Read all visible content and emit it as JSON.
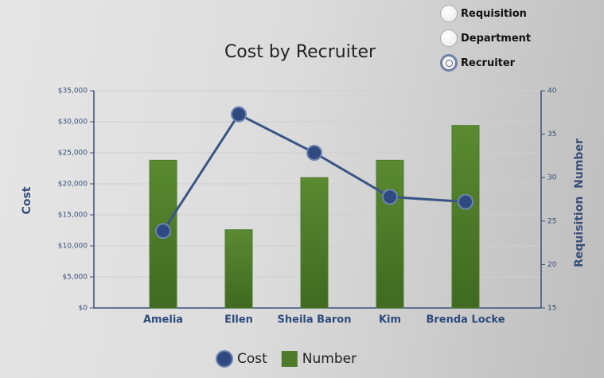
{
  "chart_data": {
    "type": "bar-line",
    "title": "Cost by Recruiter",
    "categories": [
      "Amelia",
      "Ellen",
      "Sheila Baron",
      "Kim",
      "Brenda Locke"
    ],
    "series": [
      {
        "name": "Number",
        "type": "bar",
        "axis": "y2",
        "color": "#4f7a2c",
        "values": [
          32,
          24,
          30,
          32,
          36
        ]
      },
      {
        "name": "Cost",
        "type": "line",
        "axis": "y",
        "color": "#3a5585",
        "values": [
          12400,
          31200,
          25000,
          17900,
          17100
        ]
      }
    ],
    "ylabel": "Cost",
    "y2label": "Requisition  Number",
    "ylim": [
      0,
      35000
    ],
    "yticks": [
      {
        "value": 0,
        "label": "$0"
      },
      {
        "value": 5000,
        "label": "$5,000"
      },
      {
        "value": 10000,
        "label": "$10,000"
      },
      {
        "value": 15000,
        "label": "$15,000"
      },
      {
        "value": 20000,
        "label": "$20,000"
      },
      {
        "value": 25000,
        "label": "$25,000"
      },
      {
        "value": 30000,
        "label": "$30,000"
      },
      {
        "value": 35000,
        "label": "$35,000"
      }
    ],
    "y2lim": [
      15,
      40
    ],
    "y2ticks": [
      15,
      20,
      25,
      30,
      35,
      40
    ],
    "grid": true
  },
  "radio_group": {
    "options": [
      "Requisition",
      "Department",
      "Recruiter"
    ],
    "selected": "Recruiter"
  }
}
